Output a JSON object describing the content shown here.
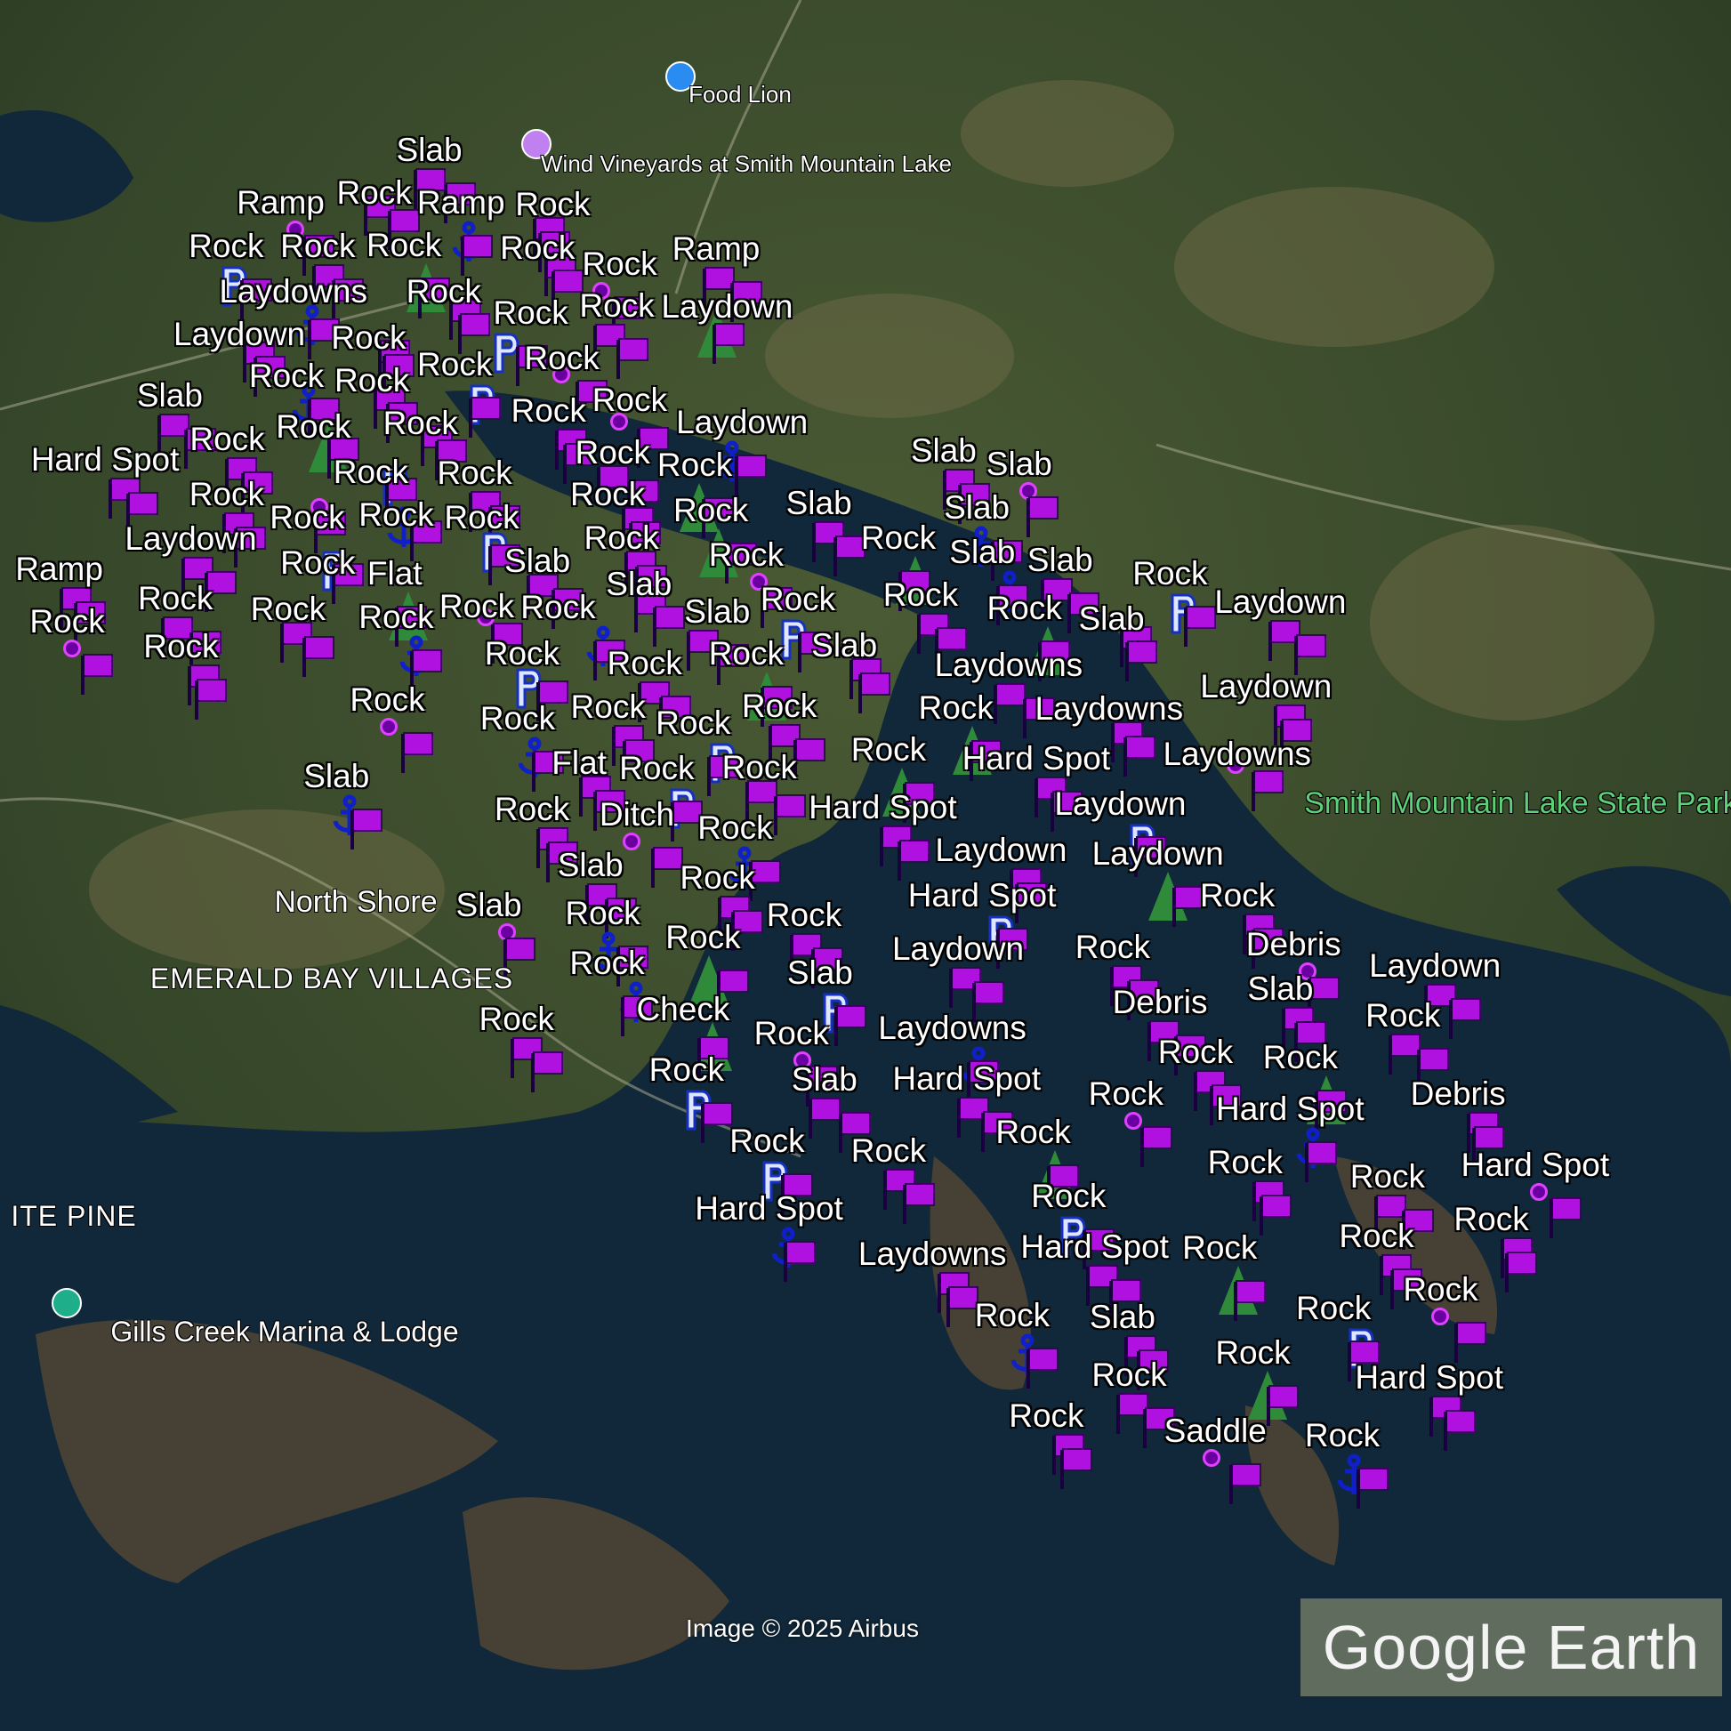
{
  "map": {
    "places": {
      "food_lion": "Food Lion",
      "wind_vineyards": "Wind Vineyards at Smith Mountain Lake",
      "state_park": "Smith Mountain Lake State Park",
      "north_shore": "North Shore",
      "emerald_bay": "EMERALD BAY VILLAGES",
      "white_pine": "ITE PINE",
      "gills_creek": "Gills Creek Marina & Lodge"
    },
    "marker_labels": [
      "Slab",
      "Rock",
      "Ramp",
      "Ramp",
      "Rock",
      "Rock",
      "Rock",
      "Rock",
      "Rock",
      "Ramp",
      "Rock",
      "Laydowns",
      "Rock",
      "Rock",
      "Rock",
      "Laydown",
      "Laydown",
      "Rock",
      "Rock",
      "Rock",
      "Rock",
      "Rock",
      "Slab",
      "Rock",
      "Rock",
      "Rock",
      "Rock",
      "Laydown",
      "Rock",
      "Rock",
      "Rock",
      "Rock",
      "Hard Spot",
      "Rock",
      "Rock",
      "Rock",
      "Rock",
      "Rock",
      "Rock",
      "Rock",
      "Slab",
      "Slab",
      "Slab",
      "Slab",
      "Laydown",
      "Rock",
      "Rock",
      "Rock",
      "Slab",
      "Slab",
      "Rock",
      "Slab",
      "Slab",
      "Rock",
      "Ramp",
      "Flat",
      "Rock",
      "Rock",
      "Rock",
      "Rock",
      "Slab",
      "Rock",
      "Rock",
      "Rock",
      "Slab",
      "Laydown",
      "Rock",
      "Rock",
      "Rock",
      "Rock",
      "Rock",
      "Rock",
      "Slab",
      "Laydowns",
      "Rock",
      "Rock",
      "Rock",
      "Rock",
      "Rock",
      "Rock",
      "Laydowns",
      "Laydown",
      "Laydowns",
      "Slab",
      "Flat",
      "Rock",
      "Rock",
      "Rock",
      "Hard Spot",
      "Rock",
      "Ditch",
      "Rock",
      "Hard Spot",
      "Laydown",
      "Laydown",
      "Laydown",
      "Slab",
      "Rock",
      "Slab",
      "Rock",
      "Rock",
      "Hard Spot",
      "Rock",
      "Rock",
      "Laydown",
      "Rock",
      "Debris",
      "Rock",
      "Laydown",
      "Slab",
      "Slab",
      "Check",
      "Debris",
      "Rock",
      "Rock",
      "Laydowns",
      "Rock",
      "Rock",
      "Rock",
      "Rock",
      "Slab",
      "Hard Spot",
      "Rock",
      "Hard Spot",
      "Debris",
      "Rock",
      "Rock",
      "Rock",
      "Rock",
      "Rock",
      "Hard Spot",
      "Hard Spot",
      "Laydowns",
      "Rock",
      "Hard Spot",
      "Rock",
      "Rock",
      "Rock",
      "Rock",
      "Rock",
      "Slab",
      "Rock",
      "Rock",
      "Rock",
      "Hard Spot",
      "Rock",
      "Saddle",
      "Rock"
    ],
    "marker_icons": [
      "purple-flag",
      "anchor",
      "parking",
      "tree",
      "pin"
    ],
    "attribution": "Image © 2025 Airbus",
    "logo": "Google Earth",
    "colors": {
      "flag": "#b010e0",
      "anchor": "#1020c8",
      "park_label": "#5fd07a",
      "water": "#0f2a3a"
    }
  }
}
